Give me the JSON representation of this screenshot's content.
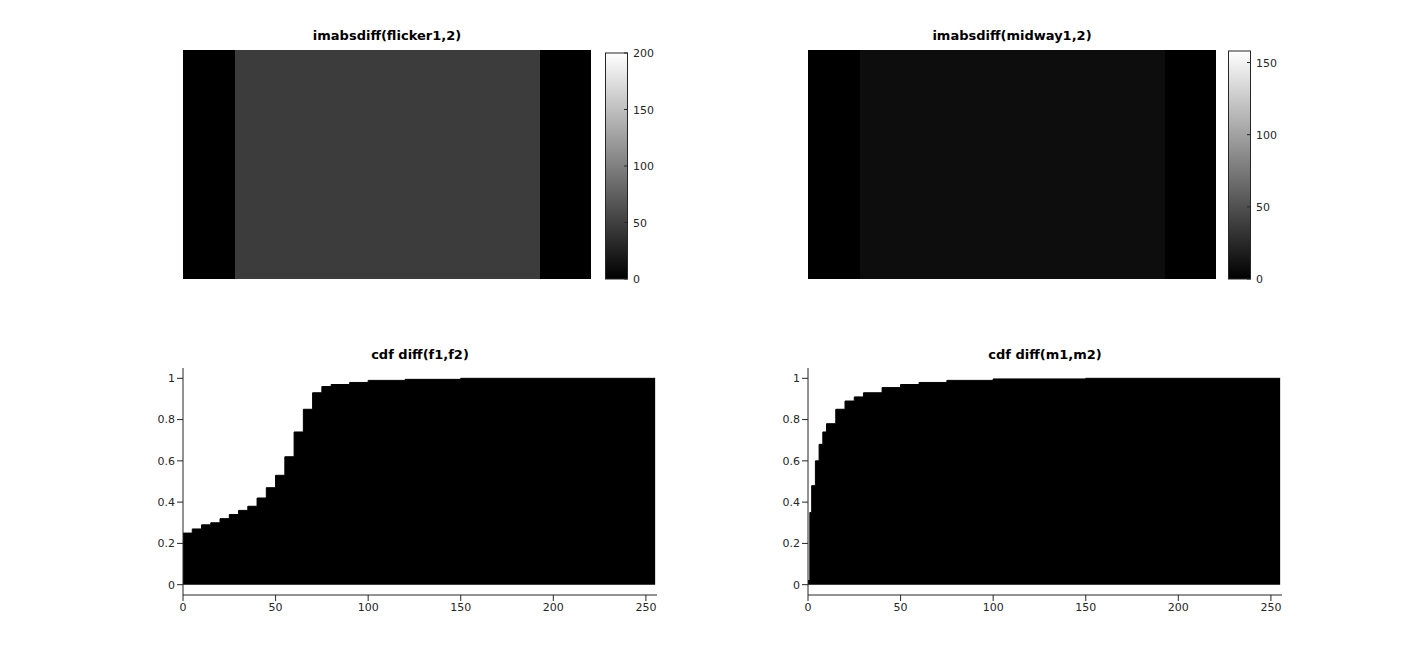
{
  "chart_data": [
    {
      "type": "image",
      "title": "imabsdiff(flicker1,2)",
      "colorbar_range": [
        0,
        200
      ],
      "colorbar_ticks": [
        0,
        50,
        100,
        150,
        200
      ]
    },
    {
      "type": "image",
      "title": "imabsdiff(midway1,2)",
      "colorbar_range": [
        0,
        158
      ],
      "colorbar_ticks": [
        0,
        50,
        100,
        150
      ]
    },
    {
      "type": "area",
      "title": "cdf diff(f1,f2)",
      "color": "#000000",
      "x": [
        0,
        5,
        10,
        15,
        20,
        25,
        30,
        35,
        40,
        45,
        50,
        55,
        60,
        65,
        70,
        75,
        80,
        90,
        100,
        120,
        150,
        255
      ],
      "values": [
        0.25,
        0.27,
        0.29,
        0.3,
        0.32,
        0.34,
        0.36,
        0.38,
        0.42,
        0.47,
        0.53,
        0.62,
        0.74,
        0.85,
        0.93,
        0.96,
        0.97,
        0.98,
        0.99,
        0.995,
        1,
        1
      ],
      "xlim": [
        0,
        256
      ],
      "xticks": [
        0,
        50,
        100,
        150,
        200,
        250
      ],
      "ylim": [
        -0.05,
        1.05
      ],
      "yticks": [
        0,
        0.2,
        0.4,
        0.6,
        0.8,
        1
      ]
    },
    {
      "type": "area",
      "title": "cdf diff(m1,m2)",
      "color": "#000000",
      "x": [
        0,
        1,
        2,
        4,
        6,
        8,
        10,
        15,
        20,
        25,
        30,
        40,
        50,
        60,
        75,
        100,
        150,
        255
      ],
      "values": [
        0.02,
        0.35,
        0.48,
        0.6,
        0.68,
        0.74,
        0.78,
        0.85,
        0.89,
        0.91,
        0.93,
        0.955,
        0.97,
        0.98,
        0.99,
        0.997,
        1,
        1
      ],
      "xlim": [
        0,
        256
      ],
      "xticks": [
        0,
        50,
        100,
        150,
        200,
        250
      ],
      "ylim": [
        -0.05,
        1.05
      ],
      "yticks": [
        0,
        0.2,
        0.4,
        0.6,
        0.8,
        1
      ]
    }
  ]
}
